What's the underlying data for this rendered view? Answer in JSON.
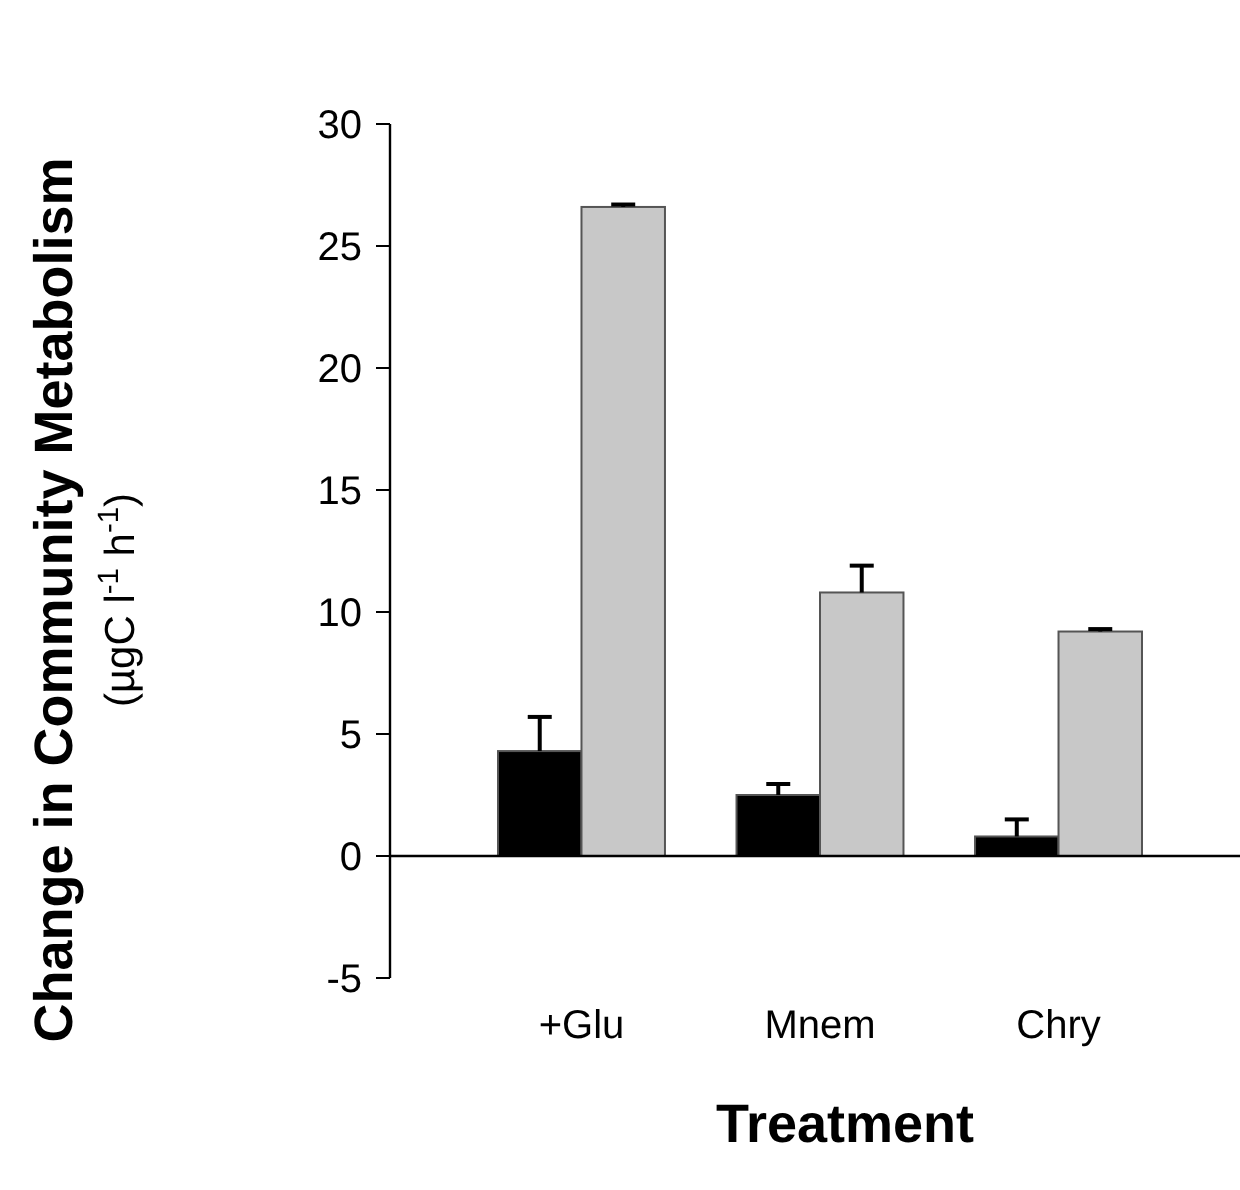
{
  "chart_data": {
    "type": "bar",
    "categories": [
      "+Glu",
      "Mnem",
      "Chry"
    ],
    "series": [
      {
        "color": "#000000",
        "values": [
          4.3,
          2.5,
          0.8
        ],
        "errors": [
          [
            4.3,
            5.7
          ],
          [
            2.5,
            2.95
          ],
          [
            0.8,
            1.5
          ]
        ]
      },
      {
        "color": "#c8c8c8",
        "values": [
          26.6,
          10.8,
          9.2
        ],
        "errors": [
          [
            26.6,
            26.7
          ],
          [
            10.8,
            11.9
          ],
          [
            9.2,
            9.3
          ]
        ]
      }
    ],
    "xlabel": "Treatment",
    "ylabel": "Change in Community Metabolism\n(µgC l$^{-1}$ h$^{-1}$)",
    "ylim": [
      -5,
      30
    ],
    "yticks": [
      -5,
      0,
      5,
      10,
      15,
      20,
      25,
      30
    ]
  }
}
